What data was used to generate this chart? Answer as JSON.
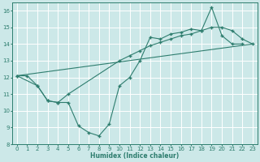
{
  "xlabel": "Humidex (Indice chaleur)",
  "bg_color": "#cce8e8",
  "grid_color": "#ffffff",
  "line_color": "#2e7d6e",
  "xlim": [
    -0.5,
    23.5
  ],
  "ylim": [
    8,
    16.5
  ],
  "xticks": [
    0,
    1,
    2,
    3,
    4,
    5,
    6,
    7,
    8,
    9,
    10,
    11,
    12,
    13,
    14,
    15,
    16,
    17,
    18,
    19,
    20,
    21,
    22,
    23
  ],
  "yticks": [
    8,
    9,
    10,
    11,
    12,
    13,
    14,
    15,
    16
  ],
  "series": [
    {
      "x": [
        0,
        1,
        2,
        3,
        4,
        5,
        6,
        7,
        8,
        9,
        10,
        11,
        12,
        13,
        14,
        15,
        16,
        17,
        18,
        19,
        20,
        21,
        22,
        23
      ],
      "y": [
        12.1,
        12.1,
        11.5,
        10.6,
        10.5,
        10.5,
        9.1,
        8.7,
        8.5,
        9.2,
        11.5,
        12.0,
        13.0,
        14.4,
        14.3,
        14.6,
        14.7,
        14.9,
        14.8,
        16.2,
        14.5,
        14.0,
        null,
        null
      ]
    },
    {
      "x": [
        0,
        2,
        3,
        4,
        5,
        10,
        11,
        12,
        13,
        14,
        15,
        16,
        17,
        18,
        19,
        20,
        21,
        22,
        23
      ],
      "y": [
        12.1,
        11.5,
        10.6,
        10.5,
        11.0,
        13.0,
        13.3,
        13.6,
        13.9,
        14.1,
        14.3,
        14.5,
        14.6,
        14.8,
        15.0,
        15.0,
        14.8,
        14.3,
        14.0
      ]
    },
    {
      "x": [
        0,
        23
      ],
      "y": [
        12.1,
        14.0
      ]
    }
  ],
  "series1": {
    "x": [
      0,
      1,
      2,
      3,
      4,
      5,
      6,
      7,
      8,
      9,
      10,
      11,
      12,
      13,
      14,
      15,
      16,
      17,
      18,
      19,
      20,
      21,
      22
    ],
    "y": [
      12.1,
      12.1,
      11.5,
      10.6,
      10.5,
      10.5,
      9.1,
      8.7,
      8.5,
      9.2,
      11.5,
      12.0,
      13.0,
      14.4,
      14.3,
      14.6,
      14.7,
      14.9,
      14.8,
      16.2,
      14.5,
      14.0,
      14.0
    ]
  },
  "series2": {
    "x": [
      0,
      2,
      3,
      4,
      5,
      10,
      11,
      12,
      13,
      14,
      15,
      16,
      17,
      18,
      19,
      20,
      21,
      22,
      23
    ],
    "y": [
      12.1,
      11.5,
      10.6,
      10.5,
      11.0,
      13.0,
      13.3,
      13.6,
      13.9,
      14.1,
      14.3,
      14.5,
      14.6,
      14.8,
      15.0,
      15.0,
      14.8,
      14.3,
      14.0
    ]
  },
  "series3": {
    "x": [
      0,
      23
    ],
    "y": [
      12.1,
      14.0
    ]
  }
}
